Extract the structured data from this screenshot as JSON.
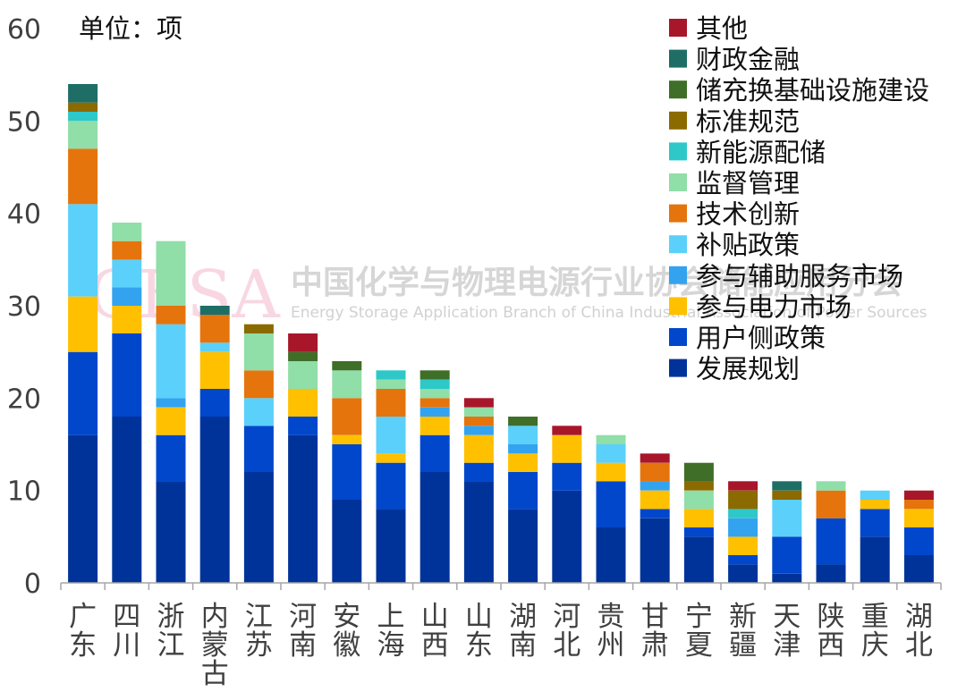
{
  "chart_data": {
    "type": "bar",
    "stacked": true,
    "unit_label": "单位：项",
    "watermark": {
      "logo": "CESA",
      "text": "中国化学与物理电源行业协会储能应用分会",
      "subtext": "Energy Storage Application Branch of China Industrial Association of Power Sources"
    },
    "ylim": [
      0,
      60
    ],
    "yticks": [
      0,
      10,
      20,
      30,
      40,
      50,
      60
    ],
    "legend_position": "top-right",
    "categories": [
      "广东",
      "四川",
      "浙江",
      "内蒙古",
      "江苏",
      "河南",
      "安徽",
      "上海",
      "山西",
      "山东",
      "湖南",
      "河北",
      "贵州",
      "甘肃",
      "宁夏",
      "新疆",
      "天津",
      "陕西",
      "重庆",
      "湖北"
    ],
    "series": [
      {
        "name": "发展规划",
        "color": "#003399",
        "values": [
          16,
          18,
          11,
          18,
          12,
          16,
          9,
          8,
          12,
          11,
          8,
          10,
          6,
          7,
          5,
          2,
          1,
          2,
          5,
          3
        ]
      },
      {
        "name": "用户侧政策",
        "color": "#0047CC",
        "values": [
          9,
          9,
          5,
          3,
          5,
          2,
          6,
          5,
          4,
          2,
          4,
          3,
          5,
          1,
          1,
          1,
          4,
          5,
          3,
          3
        ]
      },
      {
        "name": "参与电力市场",
        "color": "#FFC000",
        "values": [
          6,
          3,
          3,
          4,
          0,
          3,
          1,
          1,
          2,
          3,
          2,
          3,
          2,
          2,
          2,
          2,
          0,
          0,
          1,
          2
        ]
      },
      {
        "name": "参与辅助服务市场",
        "color": "#33A3F0",
        "values": [
          0,
          2,
          1,
          0,
          0,
          0,
          0,
          0,
          1,
          1,
          1,
          0,
          0,
          1,
          0,
          2,
          0,
          0,
          0,
          0
        ]
      },
      {
        "name": "补贴政策",
        "color": "#5BD0FA",
        "values": [
          10,
          3,
          8,
          1,
          3,
          0,
          0,
          4,
          0,
          0,
          2,
          0,
          2,
          0,
          0,
          0,
          4,
          0,
          1,
          0
        ]
      },
      {
        "name": "技术创新",
        "color": "#E5740C",
        "values": [
          6,
          2,
          2,
          3,
          3,
          0,
          4,
          3,
          1,
          1,
          0,
          0,
          0,
          2,
          0,
          0,
          0,
          3,
          0,
          1
        ]
      },
      {
        "name": "监督管理",
        "color": "#90DEA8",
        "values": [
          3,
          2,
          7,
          0,
          4,
          3,
          3,
          1,
          1,
          1,
          0,
          0,
          1,
          0,
          2,
          0,
          0,
          1,
          0,
          0
        ]
      },
      {
        "name": "新能源配储",
        "color": "#2EC8C8",
        "values": [
          1,
          0,
          0,
          0,
          0,
          0,
          0,
          1,
          1,
          0,
          0,
          0,
          0,
          0,
          0,
          1,
          0,
          0,
          0,
          0
        ]
      },
      {
        "name": "标准规范",
        "color": "#8B6A00",
        "values": [
          1,
          0,
          0,
          0,
          1,
          0,
          0,
          0,
          0,
          0,
          0,
          0,
          0,
          0,
          1,
          2,
          1,
          0,
          0,
          0
        ]
      },
      {
        "name": "储充换基础设施建设",
        "color": "#3F6E28",
        "values": [
          0,
          0,
          0,
          0,
          0,
          1,
          1,
          0,
          1,
          0,
          1,
          0,
          0,
          0,
          2,
          0,
          0,
          0,
          0,
          0
        ]
      },
      {
        "name": "财政金融",
        "color": "#1E6E66",
        "values": [
          2,
          0,
          0,
          1,
          0,
          0,
          0,
          0,
          0,
          0,
          0,
          0,
          0,
          0,
          0,
          0,
          1,
          0,
          0,
          0
        ]
      },
      {
        "name": "其他",
        "color": "#A8162A",
        "values": [
          0,
          0,
          0,
          0,
          0,
          2,
          0,
          0,
          0,
          1,
          0,
          1,
          0,
          1,
          0,
          1,
          0,
          0,
          0,
          1
        ]
      }
    ]
  }
}
